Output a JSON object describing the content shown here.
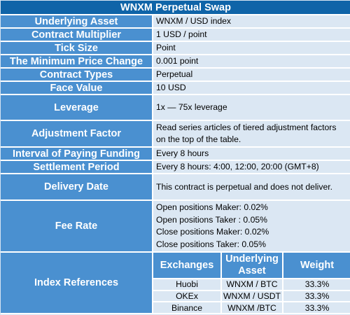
{
  "title": "WNXM Perpetual Swap",
  "rows": [
    {
      "label": "Underlying Asset",
      "value": "WNXM / USD index"
    },
    {
      "label": "Contract Multiplier",
      "value": "1 USD / point"
    },
    {
      "label": "Tick Size",
      "value": "Point"
    },
    {
      "label": "The Minimum Price Change",
      "value": "0.001 point"
    },
    {
      "label": "Contract Types",
      "value": "Perpetual"
    },
    {
      "label": "Face Value",
      "value": "10 USD"
    },
    {
      "label": "Leverage",
      "value": "1x — 75x leverage"
    },
    {
      "label": "Adjustment Factor",
      "value": "Read series articles of tiered adjustment factors on the top of the table."
    },
    {
      "label": "Interval of Paying Funding",
      "value": "Every 8 hours"
    },
    {
      "label": "Settlement Period",
      "value": "Every 8 hours: 4:00, 12:00, 20:00 (GMT+8)"
    },
    {
      "label": "Delivery Date",
      "value": "This contract is perpetual and does not deliver."
    }
  ],
  "fee": {
    "label": "Fee Rate",
    "lines": [
      "Open positions Maker: 0.02%",
      "Open positions Taker : 0.05%",
      "Close positions Maker: 0.02%",
      "Close positions Taker:  0.05%"
    ]
  },
  "index": {
    "label": "Index References",
    "headers": [
      "Exchanges",
      "Underlying Asset",
      "Weight"
    ],
    "rows": [
      [
        "Huobi",
        "WNXM / BTC",
        "33.3%"
      ],
      [
        "OKEx",
        "WNXM / USDT",
        "33.3%"
      ],
      [
        "Binance",
        "WNXM /BTC",
        "33.3%"
      ]
    ]
  }
}
